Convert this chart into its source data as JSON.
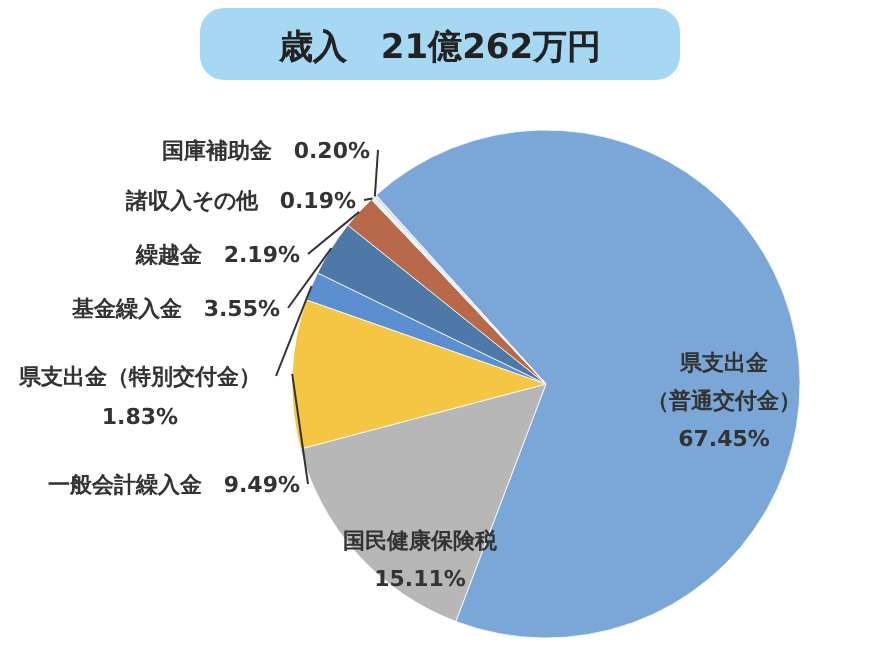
{
  "chart_data": {
    "type": "pie",
    "title": "歳入　21億262万円",
    "categories": [
      "県支出金（普通交付金）",
      "国民健康保険税",
      "一般会計繰入金",
      "県支出金（特別交付金）",
      "基金繰入金",
      "繰越金",
      "諸収入その他",
      "国庫補助金"
    ],
    "values": [
      67.45,
      15.11,
      9.49,
      1.83,
      3.55,
      2.19,
      0.19,
      0.2
    ],
    "colors": [
      "#7aa7d8",
      "#b7b7b7",
      "#f4c644",
      "#5b8fd0",
      "#4e78a8",
      "#b8694a",
      "#eeeeee",
      "#d9e3f0"
    ],
    "value_labels": [
      "67.45%",
      "15.11%",
      "9.49%",
      "1.83%",
      "3.55%",
      "2.19%",
      "0.19%",
      "0.20%"
    ]
  }
}
